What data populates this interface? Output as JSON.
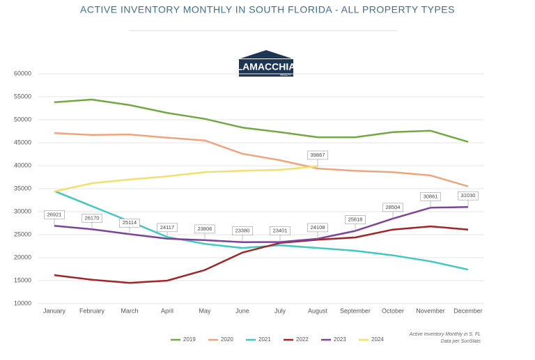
{
  "chart_data": {
    "type": "line",
    "title": "ACTIVE INVENTORY MONTHLY IN SOUTH FLORIDA - ALL PROPERTY TYPES",
    "logo": {
      "name": "LAMACCHIA",
      "tagline": "REALTY"
    },
    "notes": [
      "Active Inventory Monthly in S. FL",
      "Data per SunStats"
    ],
    "categories": [
      "January",
      "February",
      "March",
      "April",
      "May",
      "June",
      "July",
      "August",
      "September",
      "October",
      "November",
      "December"
    ],
    "ylim": [
      10000,
      60000
    ],
    "yticks": [
      10000,
      15000,
      20000,
      25000,
      30000,
      35000,
      40000,
      45000,
      50000,
      55000,
      60000
    ],
    "grid": true,
    "legend": "bottom",
    "series": [
      {
        "name": "2019",
        "color": "#72a842",
        "values": [
          53800,
          54400,
          53200,
          51500,
          50200,
          48300,
          47300,
          46200,
          46200,
          47300,
          47600,
          45200
        ]
      },
      {
        "name": "2020",
        "color": "#f0a47c",
        "values": [
          47100,
          46700,
          46800,
          46100,
          45500,
          42600,
          41200,
          39400,
          38900,
          38600,
          37900,
          35500
        ]
      },
      {
        "name": "2021",
        "color": "#3ec9c1",
        "values": [
          34500,
          31200,
          27900,
          24500,
          23000,
          22100,
          22700,
          22100,
          21500,
          20500,
          19200,
          17400
        ]
      },
      {
        "name": "2022",
        "color": "#a32424",
        "values": [
          16200,
          15200,
          14500,
          15000,
          17300,
          21100,
          23200,
          23900,
          24400,
          26100,
          26800,
          26100
        ]
      },
      {
        "name": "2023",
        "color": "#7d4399",
        "values": [
          26921,
          26170,
          25114,
          24117,
          23806,
          23380,
          23401,
          24108,
          25818,
          28504,
          30861,
          31030
        ],
        "value_labels": [
          "26921",
          "26170",
          "25114",
          "24117",
          "23806",
          "23380",
          "23401",
          "24108",
          "25818",
          "28504",
          "30861",
          "31030"
        ]
      },
      {
        "name": "2024",
        "color": "#f3df6c",
        "values": [
          34400,
          36200,
          37000,
          37700,
          38600,
          38900,
          39100,
          39867,
          null,
          null,
          null,
          null
        ],
        "value_labels": [
          null,
          null,
          null,
          null,
          null,
          null,
          null,
          "39867",
          null,
          null,
          null,
          null
        ]
      }
    ]
  }
}
